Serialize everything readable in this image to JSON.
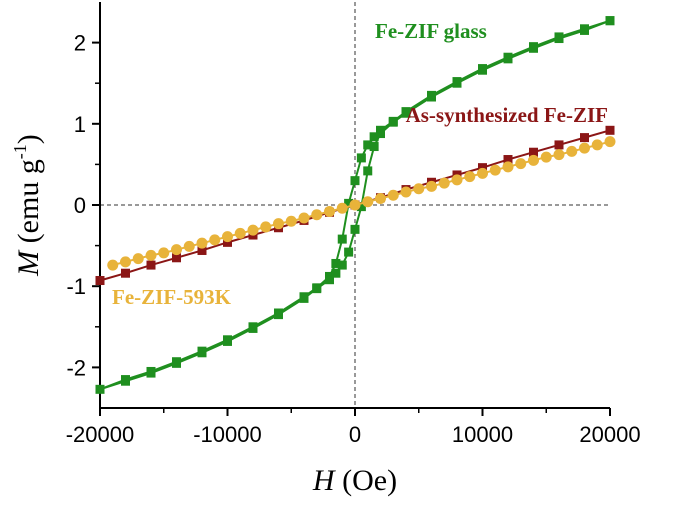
{
  "chart_data": {
    "type": "scatter-line",
    "xlabel": {
      "symbol": "H",
      "unit": "(Oe)"
    },
    "ylabel": {
      "symbol": "M",
      "unit": "(emu g",
      "sup": "-1",
      "close": ")"
    },
    "xlim": [
      -20000,
      20000
    ],
    "ylim": [
      -2.5,
      2.5
    ],
    "xticks": [
      -20000,
      -10000,
      0,
      10000,
      20000
    ],
    "yticks": [
      -2,
      -1,
      0,
      1,
      2
    ],
    "xminorticks": [
      -15000,
      -5000,
      5000,
      15000
    ],
    "yminorticks": [
      -1.5,
      -0.5,
      0.5,
      1.5
    ],
    "series": [
      {
        "name": "Fe-ZIF glass",
        "color": "#1f8f1f",
        "marker": "square",
        "x": [
          20000,
          18000,
          16000,
          14000,
          12000,
          10000,
          8000,
          6000,
          4000,
          3000,
          2000,
          1500,
          1000,
          500,
          0,
          -500,
          -1000,
          -1500,
          -2000,
          -3000,
          -4000,
          -6000,
          -8000,
          -10000,
          -12000,
          -14000,
          -16000,
          -18000,
          -20000,
          -18000,
          -16000,
          -14000,
          -12000,
          -10000,
          -8000,
          -6000,
          -4000,
          -3000,
          -2000,
          -1500,
          -1000,
          -500,
          0,
          500,
          1000,
          1500,
          2000,
          3000,
          4000,
          6000,
          8000,
          10000,
          12000,
          14000,
          16000,
          18000,
          20000
        ],
        "values": [
          2.27,
          2.17,
          2.07,
          1.95,
          1.82,
          1.68,
          1.52,
          1.35,
          1.15,
          1.03,
          0.92,
          0.84,
          0.74,
          0.58,
          0.3,
          0.02,
          -0.42,
          -0.72,
          -0.88,
          -1.02,
          -1.13,
          -1.33,
          -1.5,
          -1.66,
          -1.8,
          -1.93,
          -2.05,
          -2.15,
          -2.27,
          -2.17,
          -2.07,
          -1.95,
          -1.82,
          -1.68,
          -1.52,
          -1.35,
          -1.15,
          -1.03,
          -0.92,
          -0.84,
          -0.74,
          -0.58,
          -0.3,
          -0.02,
          0.42,
          0.72,
          0.88,
          1.02,
          1.13,
          1.33,
          1.5,
          1.66,
          1.8,
          1.93,
          2.05,
          2.15,
          2.27
        ]
      },
      {
        "name": "As-synthesized Fe-ZIF",
        "color": "#8b1616",
        "marker": "square",
        "x": [
          -20000,
          -18000,
          -16000,
          -14000,
          -12000,
          -10000,
          -8000,
          -6000,
          -4000,
          -2000,
          0,
          2000,
          4000,
          6000,
          8000,
          10000,
          12000,
          14000,
          16000,
          18000,
          20000
        ],
        "values": [
          -0.93,
          -0.84,
          -0.74,
          -0.65,
          -0.56,
          -0.46,
          -0.37,
          -0.28,
          -0.19,
          -0.09,
          0,
          0.09,
          0.19,
          0.28,
          0.37,
          0.46,
          0.56,
          0.65,
          0.74,
          0.83,
          0.92
        ]
      },
      {
        "name": "Fe-ZIF-593K",
        "color": "#e8b33a",
        "marker": "circle",
        "x": [
          -19000,
          -18000,
          -17000,
          -16000,
          -15000,
          -14000,
          -13000,
          -12000,
          -11000,
          -10000,
          -9000,
          -8000,
          -7000,
          -6000,
          -5000,
          -4000,
          -3000,
          -2000,
          -1000,
          0,
          1000,
          2000,
          3000,
          4000,
          5000,
          6000,
          7000,
          8000,
          9000,
          10000,
          11000,
          12000,
          13000,
          14000,
          15000,
          16000,
          17000,
          18000,
          19000,
          20000
        ],
        "values": [
          -0.74,
          -0.7,
          -0.66,
          -0.62,
          -0.59,
          -0.55,
          -0.51,
          -0.47,
          -0.43,
          -0.39,
          -0.35,
          -0.31,
          -0.27,
          -0.23,
          -0.2,
          -0.16,
          -0.12,
          -0.08,
          -0.04,
          0,
          0.04,
          0.08,
          0.12,
          0.16,
          0.2,
          0.23,
          0.27,
          0.31,
          0.35,
          0.39,
          0.43,
          0.47,
          0.51,
          0.55,
          0.59,
          0.62,
          0.66,
          0.7,
          0.74,
          0.78
        ]
      }
    ]
  }
}
